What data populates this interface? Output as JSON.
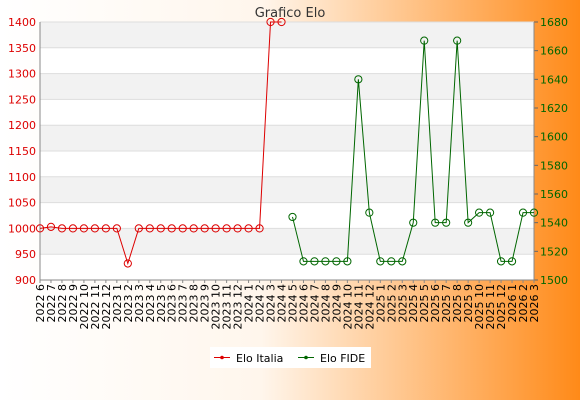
{
  "colors": {
    "italia": "#dd0000",
    "fide": "#006600",
    "bg_left": "#ffffff",
    "bg_right": "#ff8c1a",
    "band": "#f2f2f2",
    "grid": "#dddddd"
  },
  "chart_data": {
    "type": "line",
    "title": "Grafico Elo",
    "categories": [
      "2022 6",
      "2022 7",
      "2022 8",
      "2022 9",
      "2022 10",
      "2022 11",
      "2022 12",
      "2023 1",
      "2023 2",
      "2023 3",
      "2023 4",
      "2023 5",
      "2023 6",
      "2023 7",
      "2023 8",
      "2023 9",
      "2023 10",
      "2023 11",
      "2023 12",
      "2024 1",
      "2024 2",
      "2024 3",
      "2024 4",
      "2024 5",
      "2024 6",
      "2024 7",
      "2024 8",
      "2024 9",
      "2024 10",
      "2024 11",
      "2024 12",
      "2025 1",
      "2025 2",
      "2025 3",
      "2025 4",
      "2025 5",
      "2025 6",
      "2025 7",
      "2025 8",
      "2025 9",
      "2025 10",
      "2025 11",
      "2025 12",
      "2026 1",
      "2026 2",
      "2026 3"
    ],
    "y_left": {
      "min": 900,
      "max": 1400,
      "ticks": [
        900,
        950,
        1000,
        1050,
        1100,
        1150,
        1200,
        1250,
        1300,
        1350,
        1400
      ]
    },
    "y_right": {
      "min": 1500,
      "max": 1680,
      "ticks": [
        1500,
        1520,
        1540,
        1560,
        1580,
        1600,
        1620,
        1640,
        1660,
        1680
      ]
    },
    "grid": true,
    "legend_position": "bottom",
    "series": [
      {
        "name": "Elo Italia",
        "axis": "left",
        "values": [
          1000,
          1003,
          1000,
          1000,
          1000,
          1000,
          1000,
          1000,
          932,
          1000,
          1000,
          1000,
          1000,
          1000,
          1000,
          1000,
          1000,
          1000,
          1000,
          1000,
          1000,
          1400,
          1400,
          null,
          null,
          null,
          null,
          null,
          null,
          null,
          null,
          null,
          null,
          null,
          null,
          null,
          null,
          null,
          null,
          null,
          null,
          null,
          null,
          null,
          null,
          null
        ]
      },
      {
        "name": "Elo FIDE",
        "axis": "right",
        "values": [
          null,
          null,
          null,
          null,
          null,
          null,
          null,
          null,
          null,
          null,
          null,
          null,
          null,
          null,
          null,
          null,
          null,
          null,
          null,
          null,
          null,
          null,
          null,
          1544,
          1513,
          1513,
          1513,
          1513,
          1513,
          1640,
          1547,
          1513,
          1513,
          1513,
          1540,
          1667,
          1540,
          1540,
          1667,
          1540,
          1547,
          1547,
          1513,
          1513,
          1547,
          1547
        ]
      }
    ]
  }
}
